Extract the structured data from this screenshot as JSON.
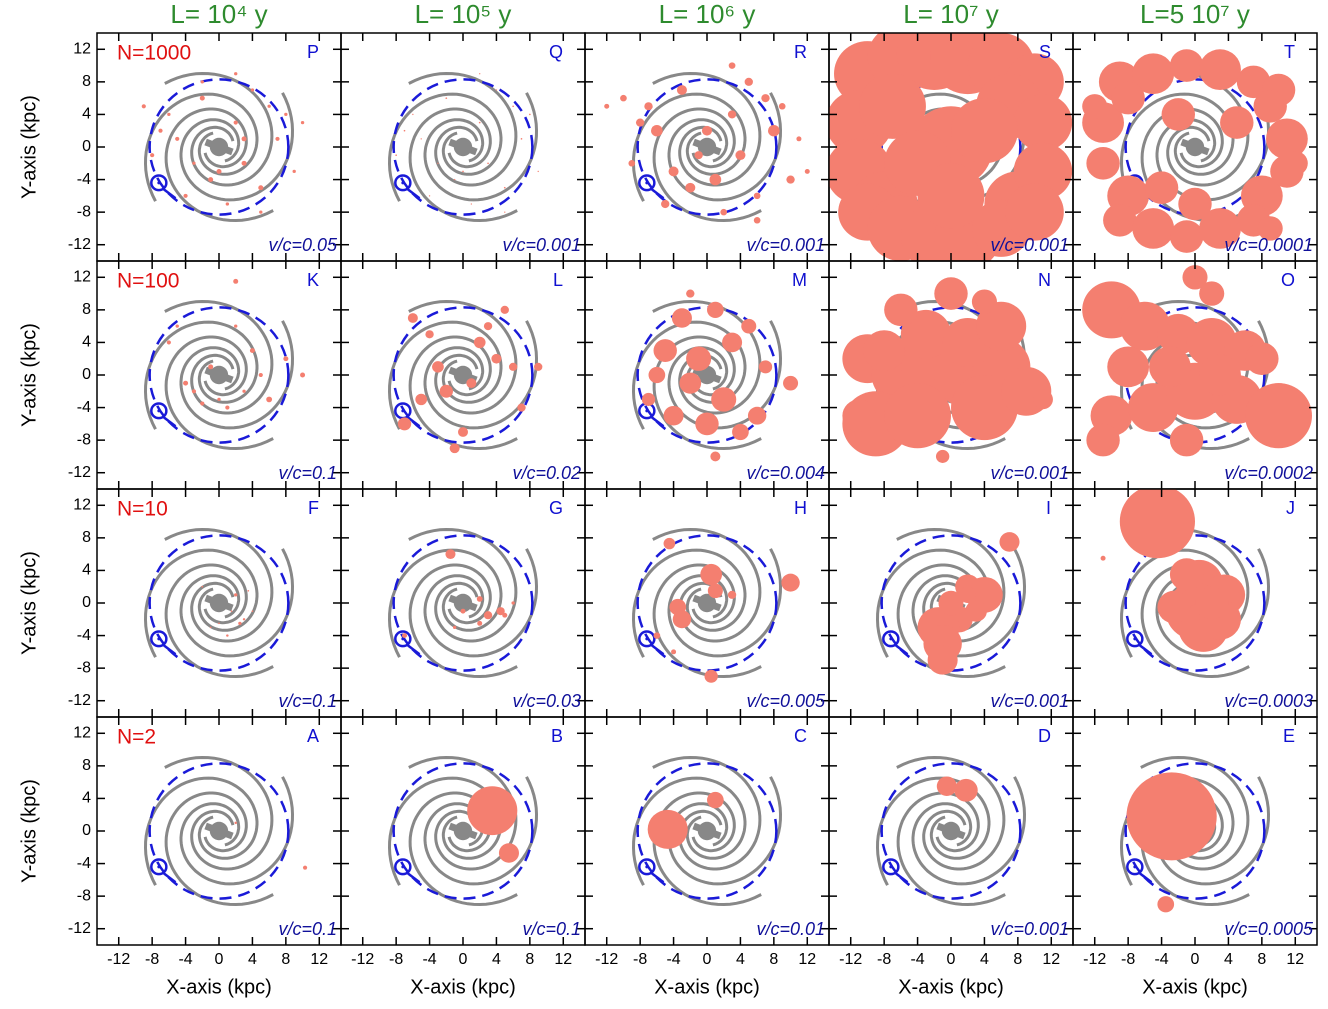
{
  "chart_data": {
    "type": "bubble",
    "x_label": "X-axis (kpc)",
    "y_label": "Y-axis (kpc)",
    "xlim": [
      -14.6,
      14.6
    ],
    "ylim": [
      -14,
      14
    ],
    "xticks": [
      -12,
      -8,
      -4,
      0,
      4,
      8,
      12
    ],
    "yticks": [
      -12,
      -8,
      -4,
      0,
      4,
      8,
      12
    ],
    "color": "#f47f70",
    "columns": [
      "L=  10⁴ y",
      "L=  10⁵ y",
      "L=  10⁶ y",
      "L=  10⁷ y",
      "L=5 10⁷ y"
    ],
    "rows": [
      "N=1000",
      "N=100",
      "N=10",
      "N=2"
    ],
    "panels": [
      {
        "label": "P",
        "note": "v/c=0.05",
        "x": [
          2,
          -3,
          5,
          -6,
          7,
          1,
          -2,
          4,
          -8,
          9,
          3,
          -5,
          6,
          -1,
          8,
          -4,
          0,
          2,
          -7,
          5,
          10,
          -9,
          3,
          -2
        ],
        "y": [
          3,
          -2,
          -5,
          4,
          1,
          -7,
          6,
          7,
          -1,
          -3,
          -2,
          1,
          5,
          -4,
          4,
          -6,
          -3,
          9,
          2,
          -8,
          3,
          5,
          1,
          8
        ],
        "r": [
          0.25,
          0.2,
          0.3,
          0.2,
          0.25,
          0.2,
          0.3,
          0.2,
          0.25,
          0.2,
          0.3,
          0.25,
          0.2,
          0.3,
          0.2,
          0.25,
          0.3,
          0.2,
          0.25,
          0.2,
          0.2,
          0.25,
          0.3,
          0.2
        ]
      },
      {
        "label": "Q",
        "note": "v/c=0.001",
        "x": [
          2,
          -3,
          5,
          -6,
          7,
          1,
          -2,
          4,
          -8,
          9,
          3,
          -5,
          6,
          -1,
          8,
          -4,
          0,
          2,
          -7,
          5
        ],
        "y": [
          3,
          -2,
          -5,
          4,
          1,
          -7,
          6,
          7,
          -1,
          -3,
          -2,
          1,
          5,
          -4,
          4,
          -6,
          -3,
          9,
          2,
          -8
        ],
        "r": [
          0.1,
          0.08,
          0.1,
          0.08,
          0.1,
          0.08,
          0.1,
          0.08,
          0.1,
          0.08,
          0.1,
          0.08,
          0.1,
          0.08,
          0.1,
          0.08,
          0.1,
          0.08,
          0.1,
          0.08
        ]
      },
      {
        "label": "R",
        "note": "v/c=0.001",
        "x": [
          3,
          -4,
          6,
          -7,
          8,
          2,
          -3,
          5,
          -9,
          10,
          4,
          -6,
          7,
          -2,
          9,
          -5,
          1,
          3,
          -8,
          6,
          11,
          -10,
          -12,
          12,
          0,
          -1
        ],
        "y": [
          4,
          -3,
          -6,
          5,
          2,
          -8,
          7,
          8,
          -2,
          -4,
          -1,
          2,
          6,
          -5,
          5,
          -7,
          -4,
          10,
          3,
          -9,
          1,
          6,
          5,
          -3,
          2,
          -1
        ],
        "r": [
          0.5,
          0.6,
          0.4,
          0.5,
          0.7,
          0.4,
          0.6,
          0.5,
          0.4,
          0.5,
          0.6,
          0.7,
          0.5,
          0.6,
          0.4,
          0.5,
          0.7,
          0.4,
          0.5,
          0.4,
          0.3,
          0.4,
          0.3,
          0.3,
          0.6,
          0.5
        ]
      },
      {
        "label": "S",
        "note": "v/c=0.001",
        "x": [
          -10,
          -6,
          -2,
          2,
          6,
          10,
          -11,
          -7,
          7,
          11,
          -11,
          -8,
          8,
          11,
          -10,
          -6,
          -2,
          2,
          6,
          10,
          0,
          -4,
          4,
          0
        ],
        "y": [
          9,
          11,
          11.5,
          11,
          10,
          8,
          3,
          5,
          5,
          3,
          -3,
          -7,
          -7,
          -3,
          -8,
          -10,
          -11,
          -11,
          -10,
          -8,
          0,
          -2,
          2,
          -6
        ],
        "r": [
          4,
          4,
          4.5,
          4.5,
          4,
          3.5,
          4,
          4,
          4,
          3.5,
          4,
          4,
          4,
          3.5,
          3.5,
          4,
          4,
          4,
          3.5,
          3.5,
          5,
          4,
          4,
          4
        ]
      },
      {
        "label": "T",
        "note": "v/c=0.0001",
        "x": [
          -9,
          -5,
          -1,
          3,
          7,
          10,
          -11,
          -8,
          9,
          11,
          -11,
          -8,
          8,
          11,
          -9,
          -5,
          -1,
          3,
          7,
          9,
          0,
          -4,
          5,
          -2,
          12,
          -12
        ],
        "y": [
          8,
          9,
          10,
          9.5,
          8,
          7,
          3,
          6,
          5,
          1,
          -2,
          -6,
          -6,
          -3,
          -9,
          -10,
          -11,
          -10,
          -9,
          -10,
          -7,
          -5,
          3,
          4,
          -2,
          5
        ],
        "r": [
          2.5,
          2.5,
          2,
          2.5,
          2,
          2,
          2.5,
          2,
          2,
          2.5,
          2,
          2.5,
          2.5,
          2,
          2,
          2.5,
          2,
          2.5,
          2,
          1.5,
          2,
          2,
          2,
          2,
          1.5,
          1.5
        ]
      },
      {
        "label": "K",
        "note": "v/c=0.1",
        "x": [
          2,
          -3,
          4,
          -5,
          6,
          1,
          -1,
          3,
          -6,
          8,
          2,
          -4,
          5,
          0,
          10,
          -2
        ],
        "y": [
          11.5,
          -2,
          3,
          6,
          -3,
          -4,
          1,
          -2,
          4,
          2,
          6,
          -1,
          0,
          -3,
          0,
          -3.5
        ],
        "r": [
          0.3,
          0.25,
          0.3,
          0.2,
          0.35,
          0.25,
          0.3,
          0.2,
          0.25,
          0.3,
          0.2,
          0.3,
          0.25,
          0.2,
          0.3,
          0.25
        ]
      },
      {
        "label": "L",
        "note": "v/c=0.02",
        "x": [
          -6,
          -4,
          2,
          4,
          6,
          -2,
          0,
          3,
          -5,
          7,
          1,
          -3,
          5,
          -7,
          -1,
          9
        ],
        "y": [
          7,
          5,
          4,
          2,
          1,
          -2,
          -7,
          6,
          -3,
          -4,
          -1,
          1,
          8,
          -6,
          -9,
          1
        ],
        "r": [
          0.6,
          0.5,
          0.7,
          0.6,
          0.5,
          0.8,
          0.6,
          0.5,
          0.7,
          0.5,
          0.6,
          0.7,
          0.5,
          0.8,
          0.6,
          0.5
        ]
      },
      {
        "label": "M",
        "note": "v/c=0.004",
        "x": [
          -3,
          1,
          5,
          -5,
          -1,
          3,
          7,
          -6,
          -2,
          2,
          10,
          -4,
          0,
          4,
          -7,
          6,
          -2,
          1
        ],
        "y": [
          7,
          8,
          6,
          3,
          2,
          4,
          1,
          0,
          -1,
          -3,
          -1,
          -5,
          -6,
          -7,
          -3,
          -5,
          10,
          -10
        ],
        "r": [
          1.2,
          1,
          0.9,
          1.4,
          1.5,
          1.2,
          0.8,
          1,
          1.3,
          1.5,
          0.9,
          1.2,
          1.4,
          1,
          0.8,
          1.1,
          0.5,
          0.6
        ]
      },
      {
        "label": "N",
        "note": "v/c=0.001",
        "x": [
          -10,
          -6,
          -2,
          2,
          6,
          10,
          -9,
          -4,
          4,
          9,
          -3,
          2,
          6,
          -6,
          0,
          -11,
          11,
          -1,
          4,
          -8
        ],
        "y": [
          2,
          0,
          1,
          0,
          1,
          -3,
          -6,
          -5,
          -4,
          -2,
          5,
          4,
          6,
          8,
          10,
          -5,
          -3,
          -10,
          9,
          3
        ],
        "r": [
          3,
          3.5,
          4,
          4,
          3.5,
          1.5,
          4,
          4,
          4,
          3,
          3,
          3,
          3,
          2,
          2,
          2,
          1.2,
          0.8,
          1.5,
          2.5
        ]
      },
      {
        "label": "O",
        "note": "v/c=0.0002",
        "x": [
          -10,
          -6,
          -2,
          2,
          6,
          10,
          -10,
          -5,
          0,
          5,
          10,
          -3,
          3,
          -1,
          2,
          -8,
          8,
          -11,
          0
        ],
        "y": [
          8,
          6,
          5,
          4,
          3,
          -4,
          -5,
          -4,
          -2,
          -3,
          -5,
          1,
          0,
          -8,
          10,
          1,
          2,
          -8,
          12
        ],
        "r": [
          3.5,
          3,
          2.5,
          3,
          2.5,
          3,
          2.5,
          3,
          3.5,
          3,
          4,
          2.5,
          2.5,
          2,
          1.5,
          2.5,
          2,
          2,
          1.5
        ]
      },
      {
        "label": "F",
        "note": "v/c=0.1",
        "x": [
          2,
          3,
          -1,
          1,
          3.5,
          -2,
          4,
          2.5,
          1.5,
          0
        ],
        "y": [
          1,
          -2,
          -3,
          -4,
          1.5,
          2,
          -1,
          -2.5,
          -1,
          -2.5
        ],
        "r": [
          0.2,
          0.15,
          0.1,
          0.15,
          0.1,
          0.1,
          0.1,
          0.2,
          0.1,
          0.1
        ]
      },
      {
        "label": "G",
        "note": "v/c=0.03",
        "x": [
          -1.5,
          3,
          4.5,
          2,
          -7,
          5,
          2,
          0,
          6,
          -1
        ],
        "y": [
          6,
          -1.5,
          -1,
          0.5,
          -4,
          -1.5,
          -2.5,
          -1,
          0,
          -3
        ],
        "r": [
          0.6,
          0.5,
          0.5,
          0.35,
          0.3,
          0.3,
          0.3,
          0.3,
          0.2,
          0.2
        ]
      },
      {
        "label": "H",
        "note": "v/c=0.005",
        "x": [
          -4.5,
          0.5,
          1,
          10,
          -3.5,
          -3,
          0.5,
          -4,
          3,
          -6
        ],
        "y": [
          7.3,
          3.5,
          1.5,
          2.5,
          -0.5,
          -2,
          -9,
          -6,
          1,
          -4
        ],
        "r": [
          0.7,
          1.3,
          0.9,
          1.1,
          1,
          1.1,
          0.8,
          0.3,
          0.5,
          0.4
        ]
      },
      {
        "label": "I",
        "note": "v/c=0.001",
        "x": [
          7,
          4,
          2,
          1,
          -1.5,
          -1,
          -1,
          0,
          3,
          2
        ],
        "y": [
          7.5,
          1,
          2,
          -2,
          -3,
          -5,
          -7,
          0,
          -1,
          1
        ],
        "r": [
          1.2,
          2.2,
          1.5,
          1.6,
          2.5,
          2.3,
          1.8,
          1.5,
          1.3,
          1
        ]
      },
      {
        "label": "J",
        "note": "v/c=0.0003",
        "x": [
          -4.5,
          0.5,
          3.5,
          0,
          1,
          -2.5,
          -11,
          3,
          -1,
          2
        ],
        "y": [
          10,
          2.5,
          1,
          -1,
          -3,
          -0.5,
          5.5,
          -2,
          3.5,
          0
        ],
        "r": [
          4.5,
          2.8,
          2.5,
          3.5,
          3,
          2,
          0.3,
          2.5,
          2,
          2
        ]
      },
      {
        "label": "A",
        "note": "v/c=0.1",
        "x": [
          10.3,
          2
        ],
        "y": [
          -4.5,
          1
        ],
        "r": [
          0.25,
          0.15
        ]
      },
      {
        "label": "B",
        "note": "v/c=0.1",
        "x": [
          3.5,
          5.5
        ],
        "y": [
          2.5,
          -2.7
        ],
        "r": [
          3,
          1.2
        ]
      },
      {
        "label": "C",
        "note": "v/c=0.01",
        "x": [
          -4.7,
          1
        ],
        "y": [
          0.2,
          3.8
        ],
        "r": [
          2.4,
          1
        ]
      },
      {
        "label": "D",
        "note": "v/c=0.001",
        "x": [
          -0.5,
          1.8
        ],
        "y": [
          5.5,
          5
        ],
        "r": [
          1.2,
          1.4
        ]
      },
      {
        "label": "E",
        "note": "v/c=0.0005",
        "x": [
          -2.8,
          -3.5
        ],
        "y": [
          1.8,
          -9
        ],
        "r": [
          5.4,
          1
        ]
      }
    ]
  }
}
